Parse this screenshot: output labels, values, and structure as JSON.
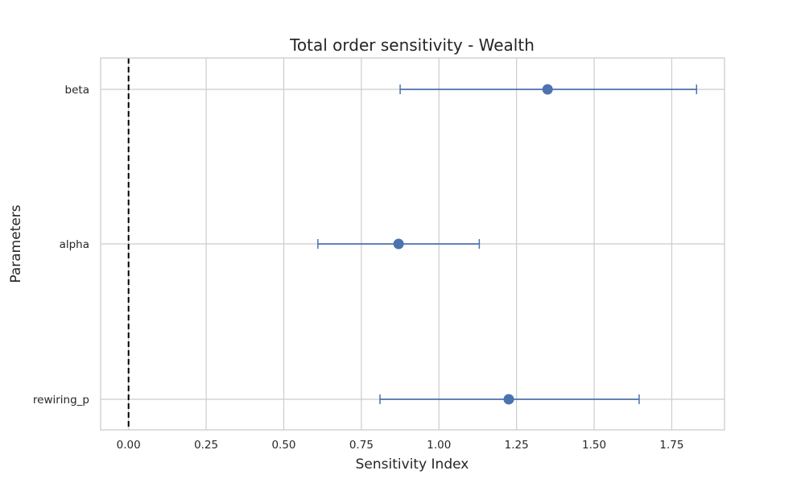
{
  "chart_data": {
    "type": "scatter",
    "title": "Total order sensitivity - Wealth",
    "xlabel": "Sensitivity Index",
    "ylabel": "Parameters",
    "xlim": [
      -0.09,
      1.92
    ],
    "xticks": [
      "0.00",
      "0.25",
      "0.50",
      "0.75",
      "1.00",
      "1.25",
      "1.50",
      "1.75"
    ],
    "categories": [
      "beta",
      "alpha",
      "rewiring_p"
    ],
    "points": [
      {
        "label": "beta",
        "value": 1.35,
        "ci_low": 0.875,
        "ci_high": 1.83
      },
      {
        "label": "alpha",
        "value": 0.87,
        "ci_low": 0.61,
        "ci_high": 1.13
      },
      {
        "label": "rewiring_p",
        "value": 1.225,
        "ci_low": 0.81,
        "ci_high": 1.645
      }
    ],
    "reference_line": {
      "x": 0,
      "style": "dashed",
      "color": "#000000"
    },
    "grid": true,
    "legend": "none",
    "colors": {
      "marker": "#4c72b0",
      "errorbar": "#4c72b0",
      "grid": "#cccccc",
      "spine": "#cccccc",
      "text": "#262626"
    }
  }
}
